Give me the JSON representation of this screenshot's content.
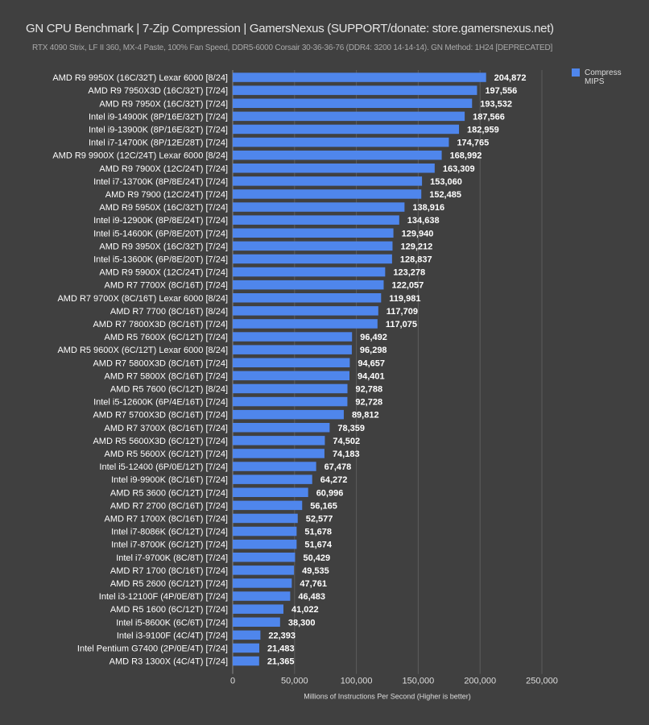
{
  "chart_data": {
    "type": "bar",
    "orientation": "horizontal",
    "title": "GN CPU Benchmark | 7-Zip Compression | GamersNexus (SUPPORT/donate: store.gamersnexus.net)",
    "subtitle": "RTX 4090 Strix, LF II 360, MX-4 Paste, 100% Fan Speed, DDR5-6000 Corsair 30-36-36-76 (DDR4: 3200 14-14-14). GN Method: 1H24 [DEPRECATED]",
    "xlabel": "Millions of Instructions Per Second (Higher is better)",
    "ylabel": "",
    "xlim": [
      0,
      250000
    ],
    "xticks": [
      "0",
      "50,000",
      "100,000",
      "150,000",
      "200,000",
      "250,000"
    ],
    "grid": true,
    "legend_position": "top-right",
    "bar_color": "#4f86ec",
    "categories": [
      "AMD R9 9950X (16C/32T) Lexar 6000 [8/24]",
      "AMD R9 7950X3D (16C/32T) [7/24]",
      "AMD R9 7950X (16C/32T) [7/24]",
      "Intel i9-14900K (8P/16E/32T) [7/24]",
      "Intel i9-13900K (8P/16E/32T) [7/24]",
      "Intel i7-14700K (8P/12E/28T) [7/24]",
      "AMD R9 9900X (12C/24T) Lexar 6000 [8/24]",
      "AMD R9 7900X (12C/24T) [7/24]",
      "Intel i7-13700K (8P/8E/24T) [7/24]",
      "AMD R9 7900 (12C/24T) [7/24]",
      "AMD R9 5950X (16C/32T) [7/24]",
      "Intel i9-12900K (8P/8E/24T) [7/24]",
      "Intel i5-14600K (6P/8E/20T) [7/24]",
      "AMD R9 3950X (16C/32T) [7/24]",
      "Intel i5-13600K (6P/8E/20T) [7/24]",
      "AMD R9 5900X (12C/24T) [7/24]",
      "AMD R7 7700X (8C/16T) [7/24]",
      "AMD R7 9700X (8C/16T) Lexar 6000 [8/24]",
      "AMD R7 7700 (8C/16T) [8/24]",
      "AMD R7 7800X3D (8C/16T) [7/24]",
      "AMD R5 7600X (6C/12T) [7/24]",
      "AMD R5 9600X (6C/12T) Lexar 6000 [8/24]",
      "AMD R7 5800X3D (8C/16T) [7/24]",
      "AMD R7 5800X (8C/16T) [7/24]",
      "AMD R5 7600 (6C/12T) [8/24]",
      "Intel i5-12600K (6P/4E/16T) [7/24]",
      "AMD R7 5700X3D (8C/16T) [7/24]",
      "AMD R7 3700X (8C/16T) [7/24]",
      "AMD R5 5600X3D (6C/12T) [7/24]",
      "AMD R5 5600X (6C/12T) [7/24]",
      "Intel i5-12400 (6P/0E/12T) [7/24]",
      "Intel i9-9900K (8C/16T) [7/24]",
      "AMD R5 3600 (6C/12T) [7/24]",
      "AMD R7 2700 (8C/16T) [7/24]",
      "AMD R7 1700X (8C/16T) [7/24]",
      "Intel i7-8086K (6C/12T) [7/24]",
      "Intel i7-8700K (6C/12T) [7/24]",
      "Intel i7-9700K (8C/8T) [7/24]",
      "AMD R7 1700 (8C/16T) [7/24]",
      "AMD R5 2600 (6C/12T) [7/24]",
      "Intel i3-12100F (4P/0E/8T) [7/24]",
      "AMD R5 1600 (6C/12T) [7/24]",
      "Intel i5-8600K (6C/6T) [7/24]",
      "Intel i3-9100F (4C/4T) [7/24]",
      "Intel Pentium G7400 (2P/0E/4T) [7/24]",
      "AMD R3 1300X (4C/4T) [7/24]"
    ],
    "series": [
      {
        "name": "Compress MIPS",
        "values": [
          204872,
          197556,
          193532,
          187566,
          182959,
          174765,
          168992,
          163309,
          153060,
          152485,
          138916,
          134638,
          129940,
          129212,
          128837,
          123278,
          122057,
          119981,
          117709,
          117075,
          96492,
          96298,
          94657,
          94401,
          92788,
          92728,
          89812,
          78359,
          74502,
          74183,
          67478,
          64272,
          60996,
          56165,
          52577,
          51678,
          51674,
          50429,
          49535,
          47761,
          46483,
          41022,
          38300,
          22393,
          21483,
          21365
        ],
        "labels": [
          "204,872",
          "197,556",
          "193,532",
          "187,566",
          "182,959",
          "174,765",
          "168,992",
          "163,309",
          "153,060",
          "152,485",
          "138,916",
          "134,638",
          "129,940",
          "129,212",
          "128,837",
          "123,278",
          "122,057",
          "119,981",
          "117,709",
          "117,075",
          "96,492",
          "96,298",
          "94,657",
          "94,401",
          "92,788",
          "92,728",
          "89,812",
          "78,359",
          "74,502",
          "74,183",
          "67,478",
          "64,272",
          "60,996",
          "56,165",
          "52,577",
          "51,678",
          "51,674",
          "50,429",
          "49,535",
          "47,761",
          "46,483",
          "41,022",
          "38,300",
          "22,393",
          "21,483",
          "21,365"
        ]
      }
    ]
  }
}
